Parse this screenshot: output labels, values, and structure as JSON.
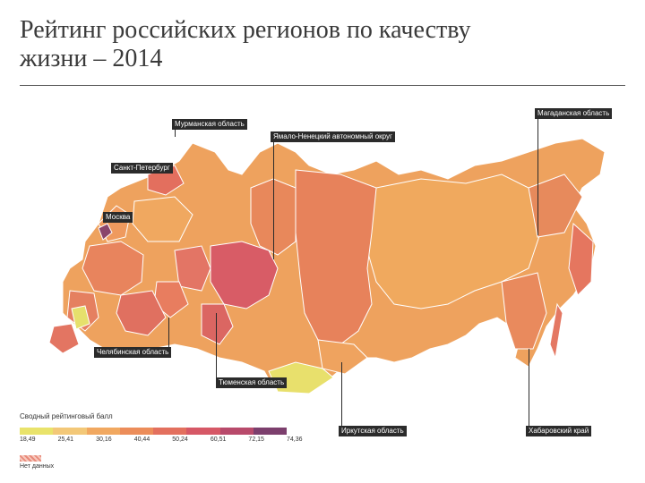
{
  "title": "Рейтинг российских регионов по качеству жизни – 2014",
  "legend": {
    "title": "Сводный рейтинговый балл",
    "ticks": [
      "18,49",
      "25,41",
      "30,16",
      "40,44",
      "50,24",
      "60,51",
      "72,15",
      "74,36"
    ],
    "colors": [
      "#e9e36b",
      "#f3c878",
      "#f1a860",
      "#ec8d5a",
      "#e3705e",
      "#d65866",
      "#b84a6b",
      "#7c3f6d"
    ],
    "nodata": "Нет данных",
    "nodata_color": "#f3b8a8"
  },
  "labels": {
    "murmansk": "Мурманская область",
    "yamal": "Ямало-Ненецкий автономный округ",
    "magadan": "Магаданская область",
    "spb": "Санкт-Петербург",
    "moscow": "Москва",
    "chelyabinsk": "Челябинская область",
    "tyumen": "Тюменская область",
    "irkutsk": "Иркутская область",
    "khabarovsk": "Хабаровский край"
  }
}
